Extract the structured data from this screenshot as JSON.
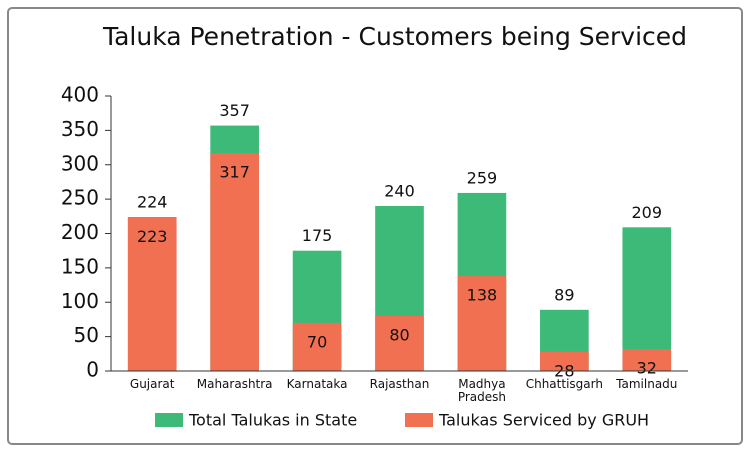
{
  "chart_data": {
    "type": "bar",
    "overlap": true,
    "title": "Taluka Penetration - Customers being Serviced",
    "categories": [
      "Gujarat",
      "Maharashtra",
      "Karnataka",
      "Rajasthan",
      "Madhya Pradesh",
      "Chhattisgarh",
      "Tamilnadu"
    ],
    "series": [
      {
        "name": "Total Talukas in State",
        "color": "#3dba78",
        "values": [
          224,
          357,
          175,
          240,
          259,
          89,
          209
        ]
      },
      {
        "name": "Talukas Serviced by GRUH",
        "color": "#f27052",
        "values": [
          223,
          317,
          70,
          80,
          138,
          28,
          32
        ]
      }
    ],
    "ylim": [
      0,
      400
    ],
    "yticks": [
      0,
      50,
      100,
      150,
      200,
      250,
      300,
      350,
      400
    ],
    "legend": "bottom"
  }
}
